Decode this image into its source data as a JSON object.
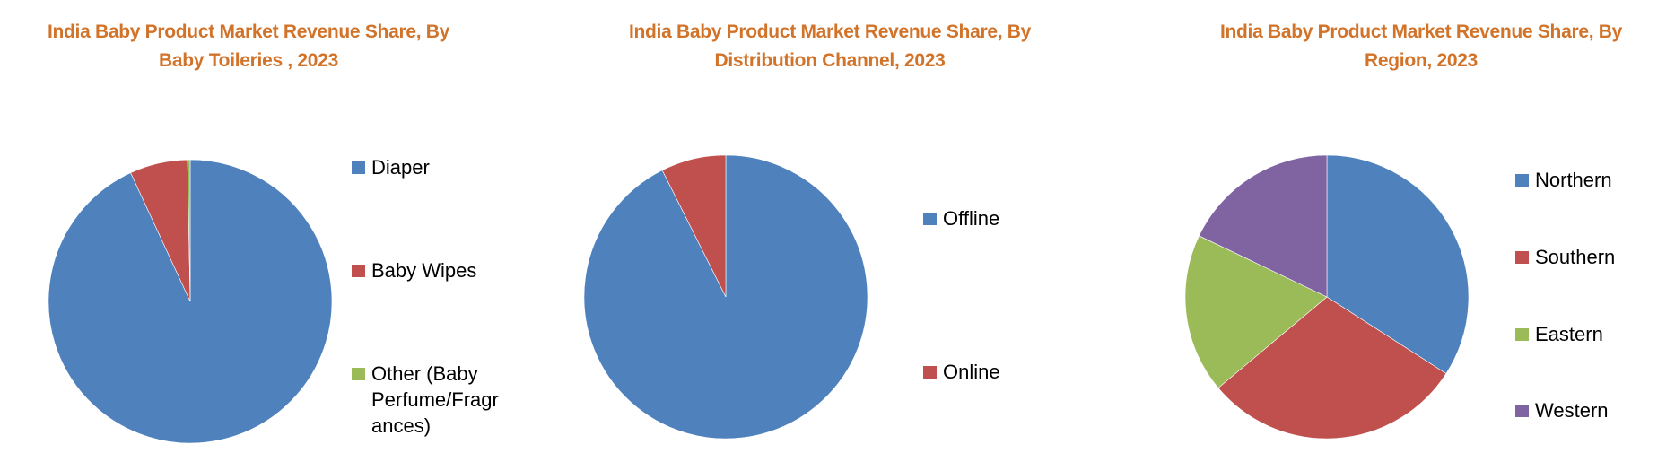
{
  "colors": {
    "title": "#D2732A",
    "blue": "#4F81BD",
    "red": "#C0504D",
    "green": "#9BBB59",
    "purple": "#8064A2"
  },
  "chart_data": [
    {
      "type": "pie",
      "title": "India Baby Product Market Revenue Share, By Baby Toileries , 2023",
      "title_lines": [
        "India Baby Product Market Revenue Share, By",
        "Baby Toileries , 2023"
      ],
      "categories": [
        "Diaper",
        "Baby Wipes",
        "Other (Baby Perfume/Fragrances)"
      ],
      "legend_lines": [
        [
          "Diaper"
        ],
        [
          "Baby Wipes"
        ],
        [
          "Other (Baby",
          "Perfume/Fragr",
          "ances)"
        ]
      ],
      "values": [
        93.1,
        6.6,
        0.3
      ],
      "unit": "%",
      "colors": [
        "#4F81BD",
        "#C0504D",
        "#9BBB59"
      ],
      "start_angle": "12 o'clock",
      "direction": "clockwise",
      "legend_position": "right",
      "data_labels": false
    },
    {
      "type": "pie",
      "title": "India Baby Product Market Revenue Share, By Distribution Channel, 2023",
      "title_lines": [
        "India Baby Product Market Revenue Share, By",
        "Distribution Channel, 2023"
      ],
      "categories": [
        "Offline",
        "Online"
      ],
      "legend_lines": [
        [
          "Offline"
        ],
        [
          "Online"
        ]
      ],
      "values": [
        92.6,
        7.4
      ],
      "unit": "%",
      "colors": [
        "#4F81BD",
        "#C0504D"
      ],
      "start_angle": "12 o'clock",
      "direction": "clockwise",
      "legend_position": "right",
      "data_labels": false
    },
    {
      "type": "pie",
      "title": "India Baby Product Market Revenue Share, By Region, 2023",
      "title_lines": [
        "India Baby Product Market Revenue Share, By",
        "Region, 2023"
      ],
      "categories": [
        "Northern",
        "Southern",
        "Eastern",
        "Western"
      ],
      "legend_lines": [
        [
          "Northern"
        ],
        [
          "Southern"
        ],
        [
          "Eastern"
        ],
        [
          "Western"
        ]
      ],
      "values": [
        34.1,
        29.8,
        18.2,
        17.9
      ],
      "unit": "%",
      "colors": [
        "#4F81BD",
        "#C0504D",
        "#9BBB59",
        "#8064A2"
      ],
      "start_angle": "12 o'clock",
      "direction": "clockwise",
      "legend_position": "right",
      "data_labels": false
    }
  ]
}
